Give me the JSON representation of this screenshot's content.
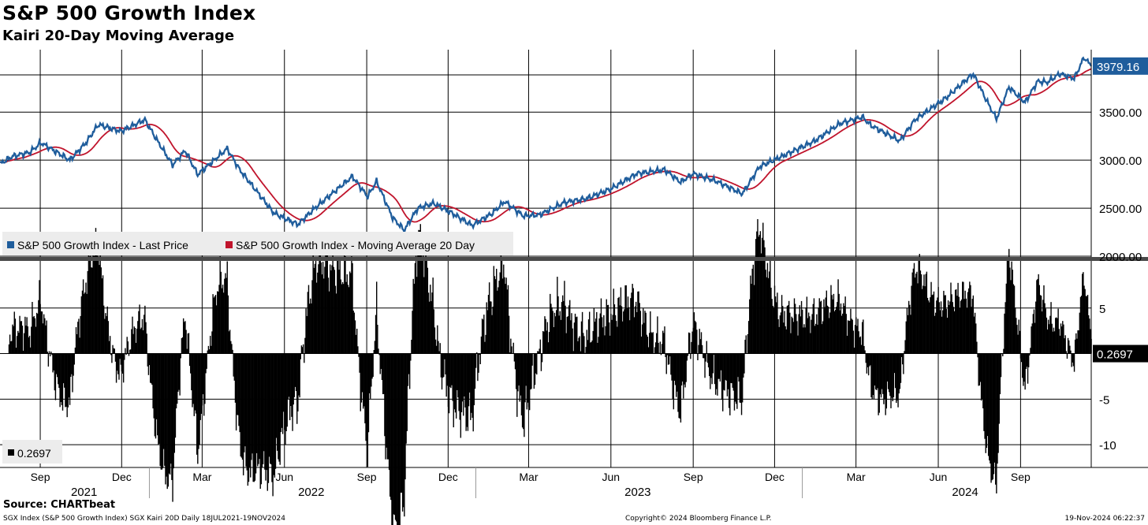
{
  "title": "S&P 500 Growth Index",
  "subtitle": "Kairi 20-Day Moving Average",
  "source": "Source: CHARTbeat",
  "footer": {
    "left": "SGX Index (S&P 500 Growth Index) SGX Kairi 20D  Daily 18JUL2021-19NOV2024",
    "center": "Copyright© 2024 Bloomberg Finance L.P.",
    "right": "19-Nov-2024 06:22:37"
  },
  "colors": {
    "price": "#1f5d9c",
    "ma": "#c0142c",
    "bars": "#000000",
    "grid": "#000000"
  },
  "chart_data": [
    {
      "type": "line",
      "title": "S&P 500 Growth Index",
      "x_range": [
        "2021-07-18",
        "2024-11-19"
      ],
      "ylim": [
        2000,
        4150
      ],
      "y_ticks": [
        "2000.00",
        "2500.00",
        "3000.00",
        "3500.00"
      ],
      "grid": true,
      "legend_position": "bottom-left",
      "last_value_label": "3979.16",
      "price_anchors": [
        [
          "2021-07-18",
          2960
        ],
        [
          "2021-08-01",
          3040
        ],
        [
          "2021-08-20",
          3080
        ],
        [
          "2021-09-02",
          3180
        ],
        [
          "2021-09-20",
          3080
        ],
        [
          "2021-10-04",
          3000
        ],
        [
          "2021-10-22",
          3180
        ],
        [
          "2021-11-05",
          3370
        ],
        [
          "2021-11-30",
          3300
        ],
        [
          "2021-12-27",
          3420
        ],
        [
          "2022-01-10",
          3200
        ],
        [
          "2022-01-27",
          2950
        ],
        [
          "2022-02-10",
          3100
        ],
        [
          "2022-02-24",
          2850
        ],
        [
          "2022-03-29",
          3120
        ],
        [
          "2022-04-12",
          2900
        ],
        [
          "2022-04-29",
          2700
        ],
        [
          "2022-05-20",
          2450
        ],
        [
          "2022-06-16",
          2330
        ],
        [
          "2022-07-05",
          2500
        ],
        [
          "2022-08-16",
          2830
        ],
        [
          "2022-09-02",
          2620
        ],
        [
          "2022-09-12",
          2780
        ],
        [
          "2022-09-30",
          2400
        ],
        [
          "2022-10-13",
          2270
        ],
        [
          "2022-10-28",
          2500
        ],
        [
          "2022-11-15",
          2550
        ],
        [
          "2022-12-05",
          2450
        ],
        [
          "2022-12-28",
          2320
        ],
        [
          "2023-01-20",
          2450
        ],
        [
          "2023-02-02",
          2570
        ],
        [
          "2023-02-23",
          2420
        ],
        [
          "2023-03-13",
          2430
        ],
        [
          "2023-04-10",
          2560
        ],
        [
          "2023-05-05",
          2600
        ],
        [
          "2023-06-01",
          2700
        ],
        [
          "2023-06-30",
          2860
        ],
        [
          "2023-07-31",
          2900
        ],
        [
          "2023-08-18",
          2770
        ],
        [
          "2023-09-01",
          2860
        ],
        [
          "2023-09-27",
          2780
        ],
        [
          "2023-10-26",
          2650
        ],
        [
          "2023-11-14",
          2930
        ],
        [
          "2023-12-14",
          3060
        ],
        [
          "2024-01-15",
          3200
        ],
        [
          "2024-02-12",
          3380
        ],
        [
          "2024-03-08",
          3450
        ],
        [
          "2024-03-18",
          3360
        ],
        [
          "2024-04-19",
          3200
        ],
        [
          "2024-05-06",
          3420
        ],
        [
          "2024-06-10",
          3650
        ],
        [
          "2024-07-10",
          3900
        ],
        [
          "2024-07-25",
          3620
        ],
        [
          "2024-08-05",
          3430
        ],
        [
          "2024-08-19",
          3760
        ],
        [
          "2024-09-06",
          3600
        ],
        [
          "2024-09-20",
          3820
        ],
        [
          "2024-10-01",
          3810
        ],
        [
          "2024-10-15",
          3900
        ],
        [
          "2024-10-31",
          3850
        ],
        [
          "2024-11-11",
          4070
        ],
        [
          "2024-11-19",
          3979.16
        ]
      ],
      "series": [
        {
          "name": "S&P 500 Growth Index - Last Price"
        },
        {
          "name": "S&P 500 Growth Index - Moving Average 20 Day"
        }
      ]
    },
    {
      "type": "bar",
      "ylim": [
        -12.5,
        10
      ],
      "y_ticks": [
        "5",
        "-5",
        "-10"
      ],
      "grid": true,
      "last_value_label": "0.2697",
      "legend_entry": "0.2697",
      "x_tick_labels": [
        {
          "date": "2021-09-01",
          "label": "Sep"
        },
        {
          "date": "2021-12-01",
          "label": "Dec"
        },
        {
          "date": "2022-03-01",
          "label": "Mar"
        },
        {
          "date": "2022-06-01",
          "label": "Jun"
        },
        {
          "date": "2022-09-01",
          "label": "Sep"
        },
        {
          "date": "2022-12-01",
          "label": "Dec"
        },
        {
          "date": "2023-03-01",
          "label": "Mar"
        },
        {
          "date": "2023-06-01",
          "label": "Jun"
        },
        {
          "date": "2023-09-01",
          "label": "Sep"
        },
        {
          "date": "2023-12-01",
          "label": "Dec"
        },
        {
          "date": "2024-03-01",
          "label": "Mar"
        },
        {
          "date": "2024-06-01",
          "label": "Jun"
        },
        {
          "date": "2024-09-01",
          "label": "Sep"
        }
      ],
      "year_labels": [
        {
          "date": "2021-10-20",
          "label": "2021"
        },
        {
          "date": "2022-07-01",
          "label": "2022"
        },
        {
          "date": "2023-07-01",
          "label": "2023"
        },
        {
          "date": "2024-07-01",
          "label": "2024"
        }
      ],
      "year_dividers": [
        "2022-01-01",
        "2023-01-01",
        "2024-01-01"
      ]
    }
  ]
}
